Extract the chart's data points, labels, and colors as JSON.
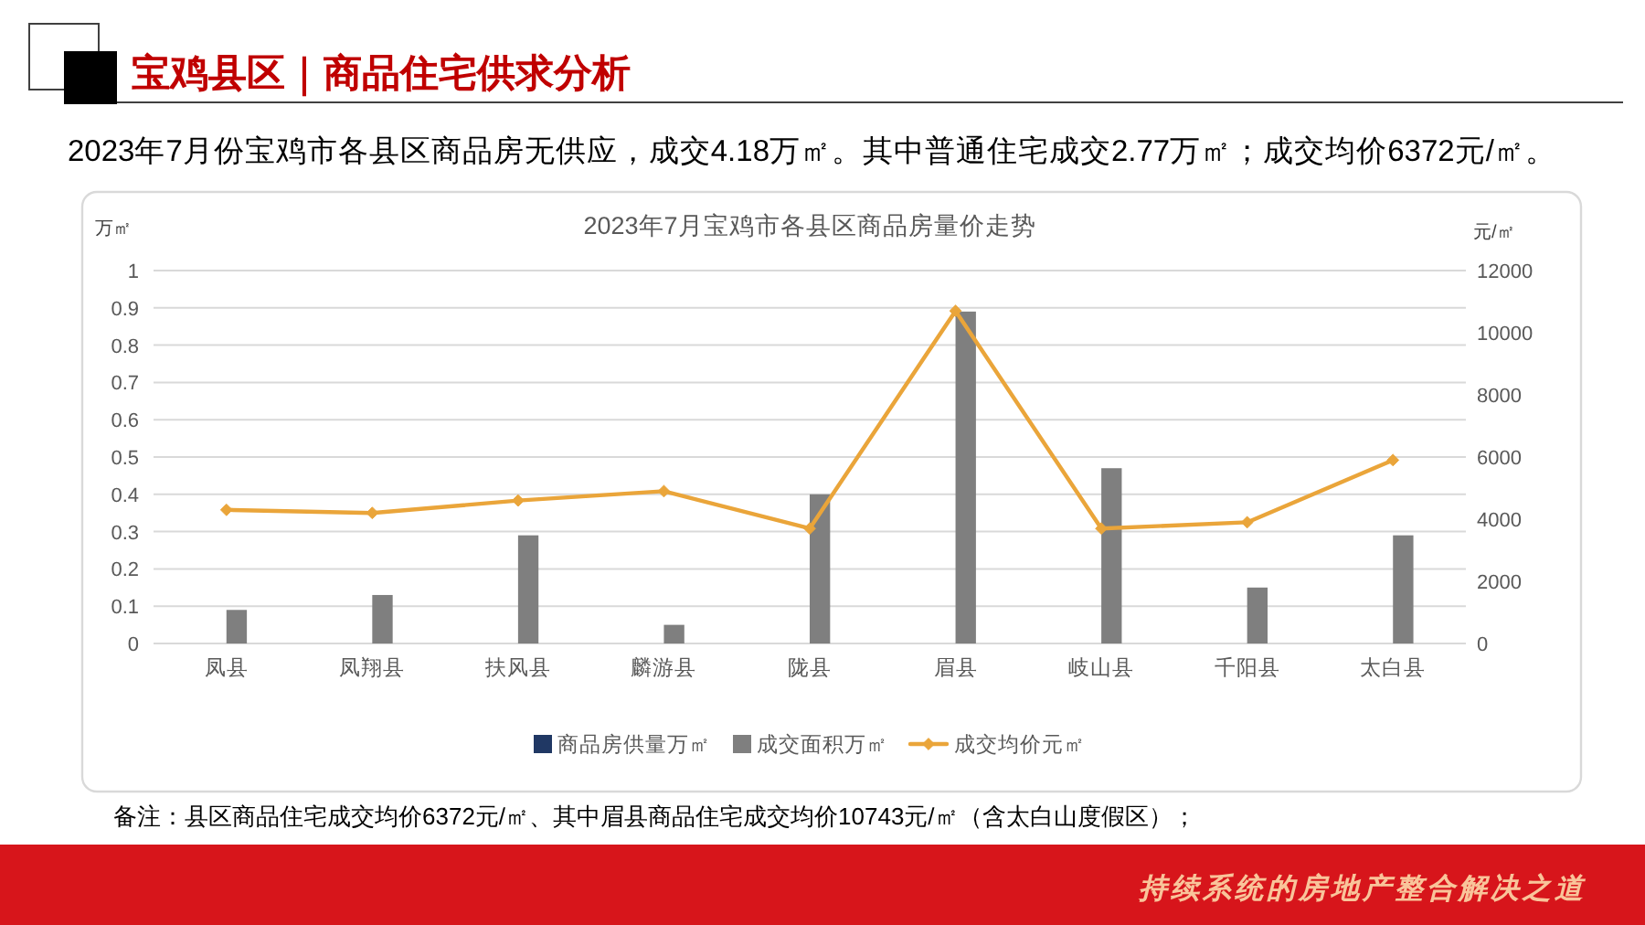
{
  "chart_data": {
    "type": "bar",
    "title": "2023年7月宝鸡市各县区商品房量价走势",
    "ylabel": "万㎡",
    "y2label": "元/㎡",
    "categories": [
      "凤县",
      "凤翔县",
      "扶风县",
      "麟游县",
      "陇县",
      "眉县",
      "岐山县",
      "千阳县",
      "太白县"
    ],
    "series": [
      {
        "name": "商品房供量万㎡",
        "color": "#203864",
        "values": [
          0,
          0,
          0,
          0,
          0,
          0,
          0,
          0,
          0
        ]
      },
      {
        "name": "成交面积万㎡",
        "color": "#7f7f7f",
        "values": [
          0.09,
          0.13,
          0.29,
          0.05,
          0.4,
          0.89,
          0.47,
          0.15,
          0.29
        ]
      },
      {
        "name": "成交均价元㎡",
        "type": "line",
        "axis": "y2",
        "color": "#eaa53a",
        "values": [
          4300,
          4200,
          4600,
          4900,
          3700,
          10700,
          3700,
          3900,
          5900
        ]
      }
    ],
    "ylim": [
      0,
      1
    ],
    "yticks": [
      0,
      0.1,
      0.2,
      0.3,
      0.4,
      0.5,
      0.6,
      0.7,
      0.8,
      0.9,
      1
    ],
    "y2lim": [
      0,
      12000
    ],
    "y2ticks": [
      0,
      2000,
      4000,
      6000,
      8000,
      10000,
      12000
    ],
    "grid": "y",
    "legend": "bottom",
    "marker": "diamond",
    "annotations": [
      "宝鸡县区｜商品住宅供求分析",
      "2023年7月份宝鸡市各县区商品房无供应，成交4.18万㎡。其中普通住宅成交2.77万㎡；成交均价6372元/㎡。",
      "备注：县区商品住宅成交均价6372元/㎡、其中眉县商品住宅成交均价10743元/㎡（含太白山度假区）；",
      "持续系统的房地产整合解决之道"
    ]
  }
}
